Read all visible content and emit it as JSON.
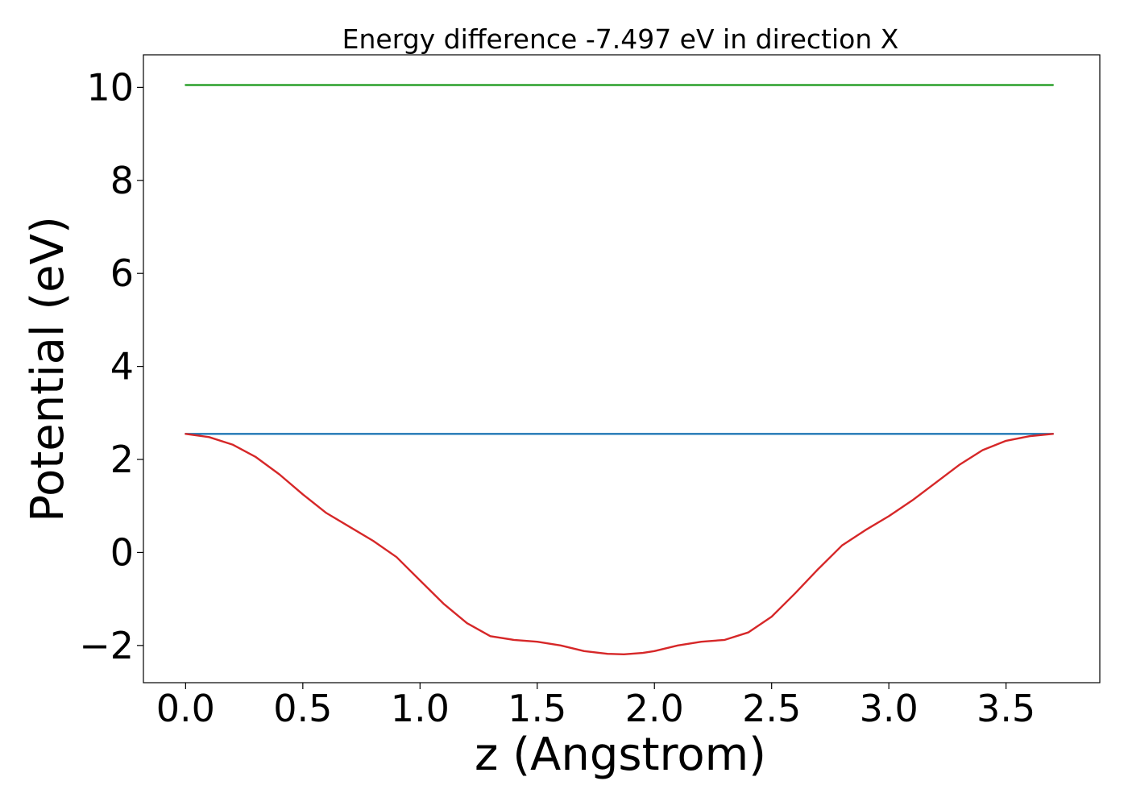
{
  "chart_data": {
    "type": "line",
    "title": "Energy difference -7.497 eV in direction X",
    "xlabel": "z (Angstrom)",
    "ylabel": "Potential (eV)",
    "xlim": [
      -0.18,
      3.9
    ],
    "ylim": [
      -2.8,
      10.7
    ],
    "xticks": [
      0.0,
      0.5,
      1.0,
      1.5,
      2.0,
      2.5,
      3.0,
      3.5
    ],
    "xtick_labels": [
      "0.0",
      "0.5",
      "1.0",
      "1.5",
      "2.0",
      "2.5",
      "3.0",
      "3.5"
    ],
    "yticks": [
      -2,
      0,
      2,
      4,
      6,
      8,
      10
    ],
    "ytick_labels": [
      "−2",
      "0",
      "2",
      "4",
      "6",
      "8",
      "10"
    ],
    "grid": false,
    "legend": "none",
    "series": [
      {
        "color": "#2ca02c",
        "x": [
          0.0,
          3.7
        ],
        "y": [
          10.05,
          10.05
        ]
      },
      {
        "color": "#1f77b4",
        "x": [
          0.0,
          3.7
        ],
        "y": [
          2.55,
          2.55
        ]
      },
      {
        "color": "#d62728",
        "x": [
          0.0,
          0.1,
          0.2,
          0.3,
          0.4,
          0.5,
          0.6,
          0.7,
          0.8,
          0.9,
          1.0,
          1.1,
          1.2,
          1.3,
          1.4,
          1.5,
          1.6,
          1.7,
          1.8,
          1.87,
          1.95,
          2.0,
          2.1,
          2.2,
          2.3,
          2.4,
          2.5,
          2.6,
          2.7,
          2.8,
          2.9,
          3.0,
          3.1,
          3.2,
          3.3,
          3.4,
          3.5,
          3.6,
          3.7
        ],
        "y": [
          2.55,
          2.48,
          2.32,
          2.05,
          1.68,
          1.25,
          0.85,
          0.55,
          0.25,
          -0.1,
          -0.6,
          -1.1,
          -1.52,
          -1.8,
          -1.88,
          -1.92,
          -2.0,
          -2.12,
          -2.18,
          -2.19,
          -2.16,
          -2.12,
          -2.0,
          -1.92,
          -1.88,
          -1.72,
          -1.38,
          -0.88,
          -0.35,
          0.15,
          0.48,
          0.78,
          1.12,
          1.5,
          1.88,
          2.2,
          2.4,
          2.5,
          2.55
        ]
      }
    ]
  }
}
